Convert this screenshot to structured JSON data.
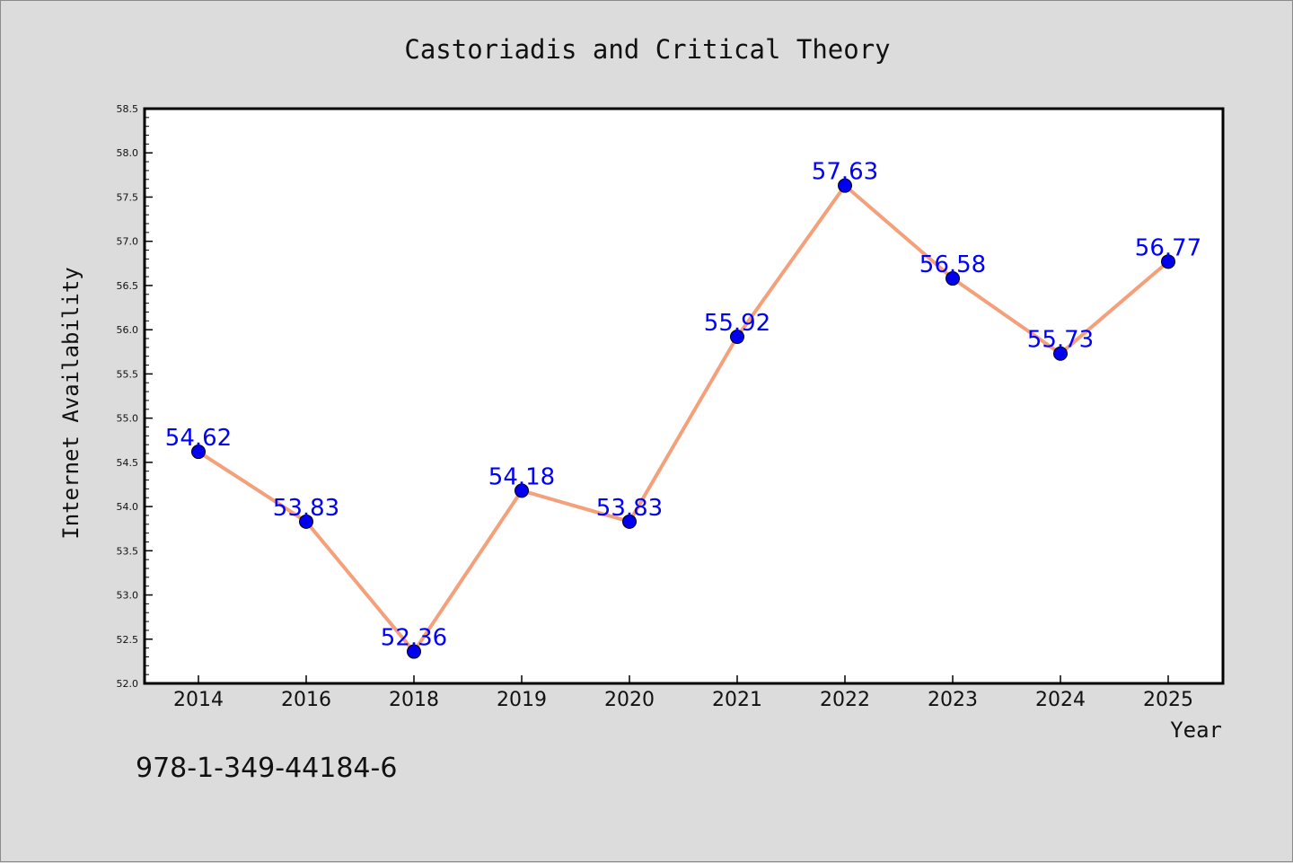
{
  "chart_data": {
    "type": "line",
    "title": "Castoriadis and Critical Theory",
    "xlabel": "Year",
    "ylabel": "Internet Availability",
    "categories": [
      "2014",
      "2016",
      "2018",
      "2019",
      "2020",
      "2021",
      "2022",
      "2023",
      "2024",
      "2025"
    ],
    "values": [
      54.62,
      53.83,
      52.36,
      54.18,
      53.83,
      55.92,
      57.63,
      56.58,
      55.73,
      56.77
    ],
    "data_labels": [
      "54.62",
      "53.83",
      "52.36",
      "54.18",
      "53.83",
      "55.92",
      "57.63",
      "56.58",
      "55.73",
      "56.77"
    ],
    "ylim": [
      52.0,
      58.5
    ],
    "yticks": [
      "52.0",
      "52.5",
      "53.0",
      "53.5",
      "54.0",
      "54.5",
      "55.0",
      "55.5",
      "56.0",
      "56.5",
      "57.0",
      "57.5",
      "58.0",
      "58.5"
    ],
    "grid": false,
    "line_color": "#f4a07a",
    "marker_color": "#0000ee",
    "label_color": "#0000ff"
  },
  "footer_text": "978-1-349-44184-6"
}
